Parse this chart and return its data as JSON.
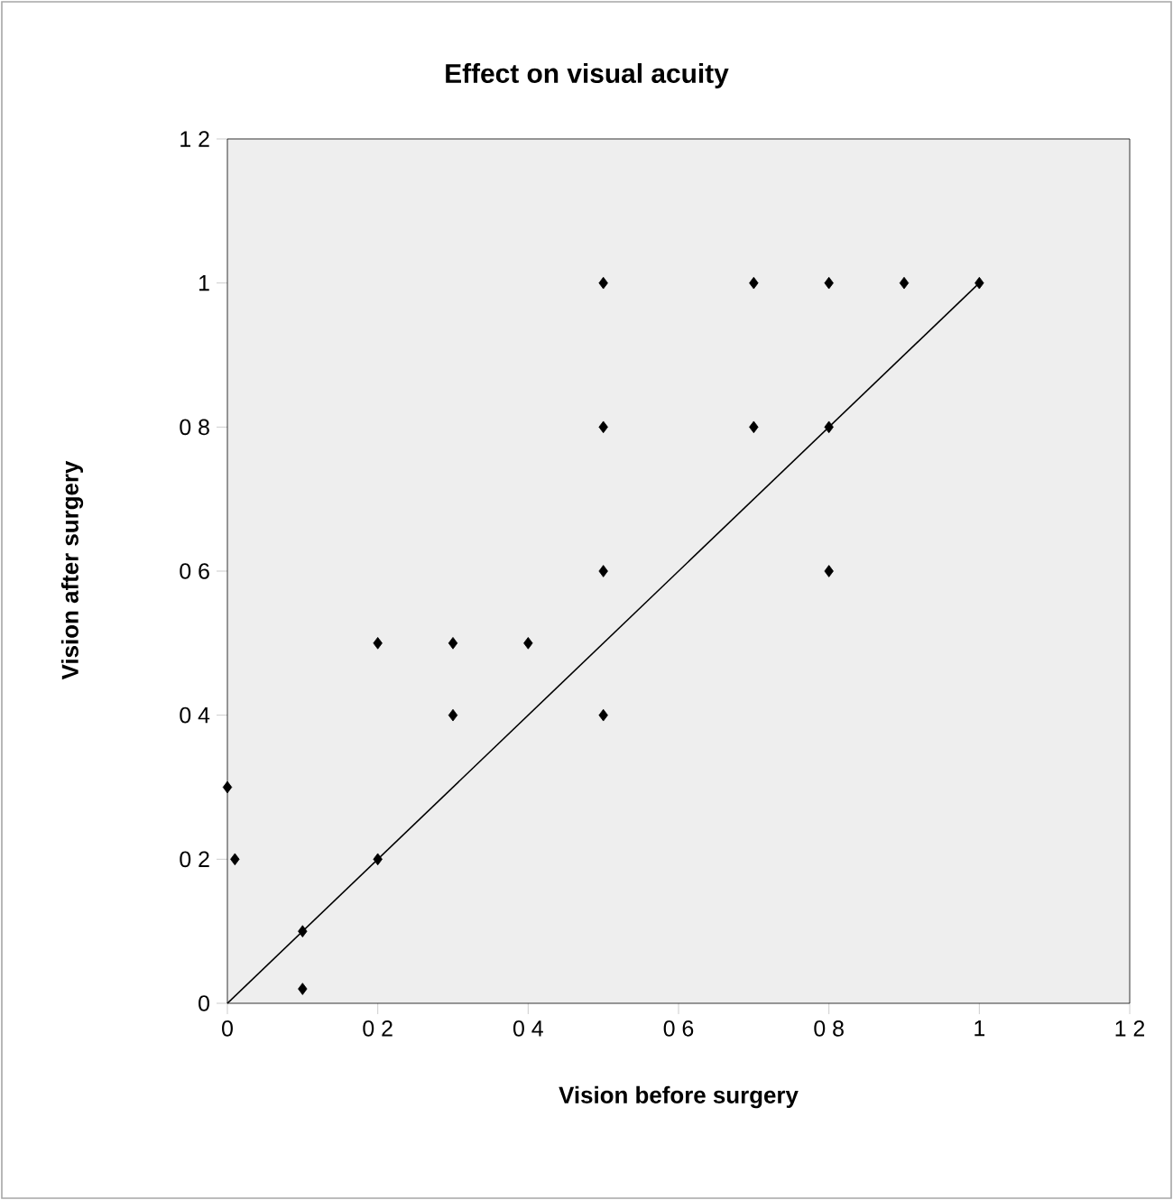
{
  "chart_data": {
    "type": "scatter",
    "title": "Effect on visual acuity",
    "xlabel": "Vision before surgery",
    "ylabel": "Vision after surgery",
    "series": [
      {
        "color": "#000000",
        "marker": "diamond",
        "x": [
          0,
          0.01,
          0.1,
          0.1,
          0.2,
          0.2,
          0.3,
          0.3,
          0.4,
          0.5,
          0.5,
          0.5,
          0.5,
          0.7,
          0.7,
          0.8,
          0.8,
          0.8,
          0.9,
          1
        ],
        "values": [
          0.3,
          0.2,
          0.1,
          0.02,
          0.2,
          0.5,
          0.5,
          0.4,
          0.5,
          1,
          0.8,
          0.6,
          0.4,
          1,
          0.8,
          1,
          0.8,
          0.6,
          1,
          1
        ]
      },
      {
        "type": "line",
        "color": "#000000",
        "marker": "none",
        "line_style": "solid",
        "x": [
          0,
          1
        ],
        "values": [
          0,
          1
        ]
      }
    ],
    "xlim": [
      0,
      1.2
    ],
    "ylim": [
      0,
      1.2
    ],
    "xticks": [
      0,
      {
        "value": 0.2,
        "label": "0 2"
      },
      {
        "value": 0.4,
        "label": "0 4"
      },
      {
        "value": 0.6,
        "label": "0 6"
      },
      {
        "value": 0.8,
        "label": "0 8"
      },
      1,
      {
        "value": 1.2,
        "label": "1 2"
      }
    ],
    "yticks": [
      0,
      {
        "value": 0.2,
        "label": "0 2"
      },
      {
        "value": 0.4,
        "label": "0 4"
      },
      {
        "value": 0.6,
        "label": "0 6"
      },
      {
        "value": 0.8,
        "label": "0 8"
      },
      1,
      {
        "value": 1.2,
        "label": "1 2"
      }
    ],
    "grid": false
  }
}
